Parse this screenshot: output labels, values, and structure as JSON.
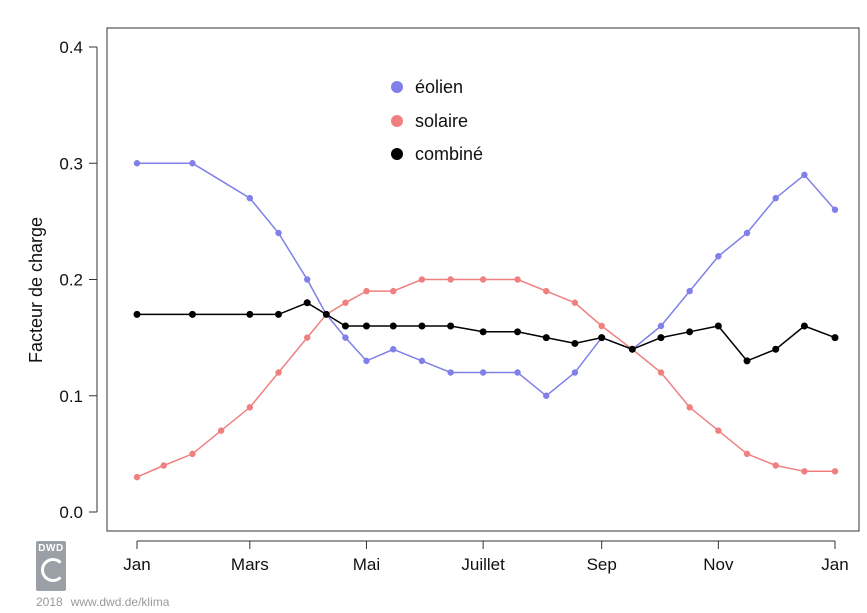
{
  "chart_data": {
    "type": "scatter",
    "title": "",
    "ylabel": "Facteur de charge",
    "xlabel": "",
    "x_ticks": [
      {
        "label": "Jan",
        "day": 1
      },
      {
        "label": "Mars",
        "day": 60
      },
      {
        "label": "Mai",
        "day": 121
      },
      {
        "label": "Juillet",
        "day": 182
      },
      {
        "label": "Sep",
        "day": 244
      },
      {
        "label": "Nov",
        "day": 305
      },
      {
        "label": "Jan",
        "day": 366
      }
    ],
    "xlim": [
      1,
      366
    ],
    "ylim": [
      0.0,
      0.4
    ],
    "y_ticks": [
      {
        "label": "0.0",
        "value": 0.0
      },
      {
        "label": "0.1",
        "value": 0.1
      },
      {
        "label": "0.2",
        "value": 0.2
      },
      {
        "label": "0.3",
        "value": 0.3
      },
      {
        "label": "0.4",
        "value": 0.4
      }
    ],
    "legend_position": "top-center",
    "series": [
      {
        "name": "éolien",
        "color": "#8080e8",
        "day": [
          1,
          30,
          60,
          75,
          90,
          100,
          110,
          121,
          135,
          150,
          165,
          182,
          200,
          215,
          230,
          244,
          260,
          275,
          290,
          305,
          320,
          335,
          350,
          366
        ],
        "values": [
          0.3,
          0.3,
          0.27,
          0.24,
          0.2,
          0.17,
          0.15,
          0.13,
          0.14,
          0.13,
          0.12,
          0.12,
          0.12,
          0.1,
          0.12,
          0.15,
          0.14,
          0.16,
          0.19,
          0.22,
          0.24,
          0.27,
          0.29,
          0.26
        ]
      },
      {
        "name": "solaire",
        "color": "#f08080",
        "day": [
          1,
          15,
          30,
          45,
          60,
          75,
          90,
          100,
          110,
          121,
          135,
          150,
          165,
          182,
          200,
          215,
          230,
          244,
          260,
          275,
          290,
          305,
          320,
          335,
          350,
          366
        ],
        "values": [
          0.03,
          0.04,
          0.05,
          0.07,
          0.09,
          0.12,
          0.15,
          0.17,
          0.18,
          0.19,
          0.19,
          0.2,
          0.2,
          0.2,
          0.2,
          0.19,
          0.18,
          0.16,
          0.14,
          0.12,
          0.09,
          0.07,
          0.05,
          0.04,
          0.035,
          0.035
        ]
      },
      {
        "name": "combiné",
        "color": "#000000",
        "day": [
          1,
          30,
          60,
          75,
          90,
          100,
          110,
          121,
          135,
          150,
          165,
          182,
          200,
          215,
          230,
          244,
          260,
          275,
          290,
          305,
          320,
          335,
          350,
          366
        ],
        "values": [
          0.17,
          0.17,
          0.17,
          0.17,
          0.18,
          0.17,
          0.16,
          0.16,
          0.16,
          0.16,
          0.16,
          0.155,
          0.155,
          0.15,
          0.145,
          0.15,
          0.14,
          0.15,
          0.155,
          0.16,
          0.13,
          0.14,
          0.16,
          0.15
        ]
      }
    ]
  },
  "footer": {
    "logo_text": "DWD",
    "year": "2018",
    "url": "www.dwd.de/klima"
  }
}
